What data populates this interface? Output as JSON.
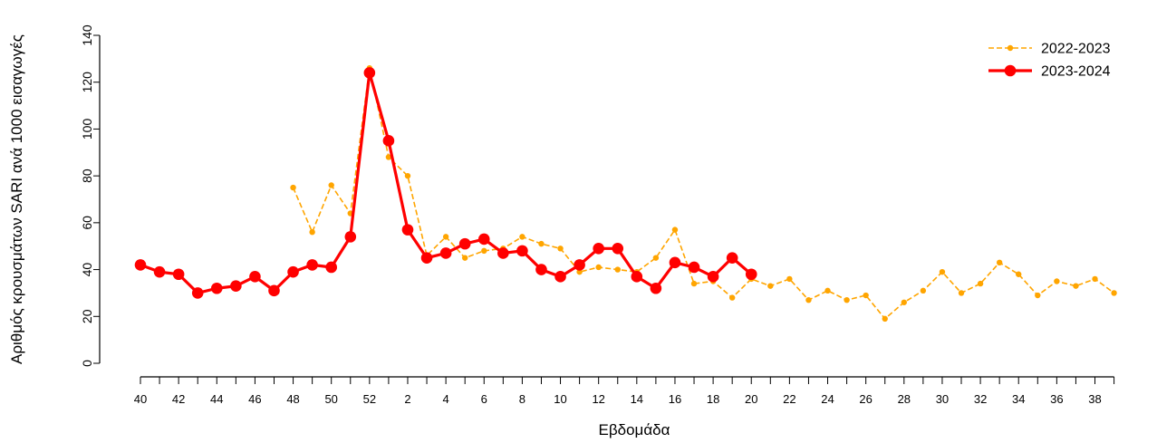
{
  "chart_data": {
    "type": "line",
    "xlabel": "Εβδομάδα",
    "ylabel": "Αριθμός κρουσμάτων SARI ανά 1000 εισαγωγές",
    "ylim": [
      0,
      140
    ],
    "yticks": [
      0,
      20,
      40,
      60,
      80,
      100,
      120,
      140
    ],
    "weeks": [
      40,
      41,
      42,
      43,
      44,
      45,
      46,
      47,
      48,
      49,
      50,
      51,
      52,
      1,
      2,
      3,
      4,
      5,
      6,
      7,
      8,
      9,
      10,
      11,
      12,
      13,
      14,
      15,
      16,
      17,
      18,
      19,
      20,
      21,
      22,
      23,
      24,
      25,
      26,
      27,
      28,
      29,
      30,
      31,
      32,
      33,
      34,
      35,
      36,
      37,
      38,
      39
    ],
    "tick_labels": [
      "40",
      "",
      "42",
      "",
      "44",
      "",
      "46",
      "",
      "48",
      "",
      "50",
      "",
      "52",
      "",
      "2",
      "",
      "4",
      "",
      "6",
      "",
      "8",
      "",
      "10",
      "",
      "12",
      "",
      "14",
      "",
      "16",
      "",
      "18",
      "",
      "20",
      "",
      "22",
      "",
      "24",
      "",
      "26",
      "",
      "28",
      "",
      "30",
      "",
      "32",
      "",
      "34",
      "",
      "36",
      "",
      "38",
      ""
    ],
    "legend_position": "top-right",
    "series": [
      {
        "name": "2022-2023",
        "color": "#FFA500",
        "style": "dashed",
        "values": [
          null,
          null,
          null,
          null,
          null,
          null,
          null,
          null,
          75,
          56,
          76,
          64,
          126,
          88,
          80,
          46,
          54,
          45,
          48,
          49,
          54,
          51,
          49,
          39,
          41,
          40,
          39,
          45,
          57,
          34,
          35,
          28,
          36,
          33,
          36,
          27,
          31,
          27,
          29,
          19,
          26,
          31,
          39,
          30,
          34,
          43,
          38,
          29,
          35,
          33,
          36,
          30
        ]
      },
      {
        "name": "2023-2024",
        "color": "#FF0000",
        "style": "solid",
        "values": [
          42,
          39,
          38,
          30,
          32,
          33,
          37,
          31,
          39,
          42,
          41,
          54,
          124,
          95,
          57,
          45,
          47,
          51,
          53,
          47,
          48,
          40,
          37,
          42,
          49,
          49,
          37,
          32,
          43,
          41,
          37,
          45,
          38,
          null,
          null,
          null,
          null,
          null,
          null,
          null,
          null,
          null,
          null,
          null,
          null,
          null,
          null,
          null,
          null,
          null,
          null,
          null
        ]
      }
    ]
  }
}
